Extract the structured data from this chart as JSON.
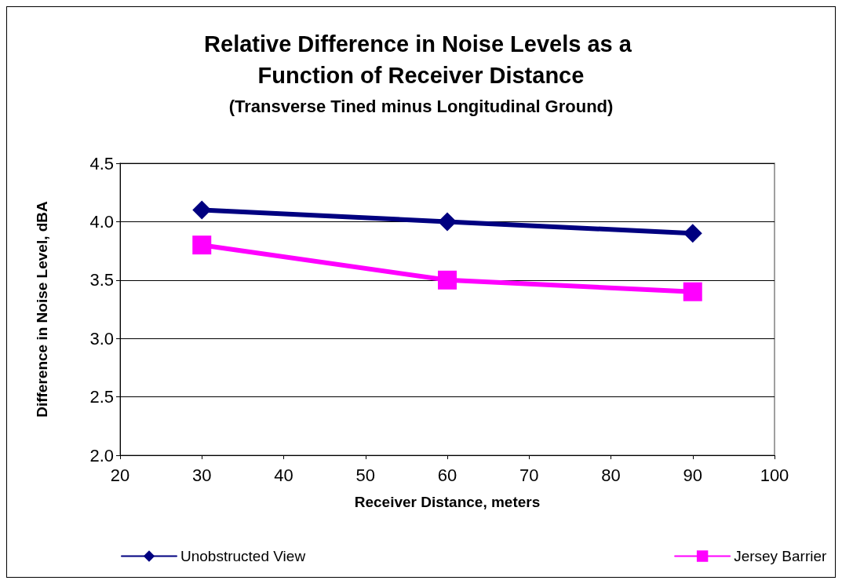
{
  "chart_data": {
    "type": "line",
    "title": "Relative Difference in Noise Levels as a Function of Receiver Distance",
    "subtitle": "(Transverse Tined minus Longitudinal Ground)",
    "xlabel": "Receiver Distance, meters",
    "ylabel": "Difference in Noise Level, dBA",
    "x": [
      30,
      60,
      90
    ],
    "series": [
      {
        "name": "Unobstructed View",
        "color": "#000080",
        "marker": "diamond",
        "values": [
          4.1,
          4.0,
          3.9
        ]
      },
      {
        "name": "Jersey Barrier",
        "color": "#ff00ff",
        "marker": "square",
        "values": [
          3.8,
          3.5,
          3.4
        ]
      }
    ],
    "xlim": [
      20,
      100
    ],
    "xticks": [
      20,
      30,
      40,
      50,
      60,
      70,
      80,
      90,
      100
    ],
    "ylim": [
      2,
      4.5
    ],
    "yticks": [
      {
        "value": 2,
        "label": "2.0"
      },
      2.5,
      {
        "value": 3,
        "label": "3.0"
      },
      3.5,
      {
        "value": 4,
        "label": "4.0"
      },
      4.5
    ],
    "grid": "y",
    "legend": "bottom",
    "line_style": "solid"
  }
}
